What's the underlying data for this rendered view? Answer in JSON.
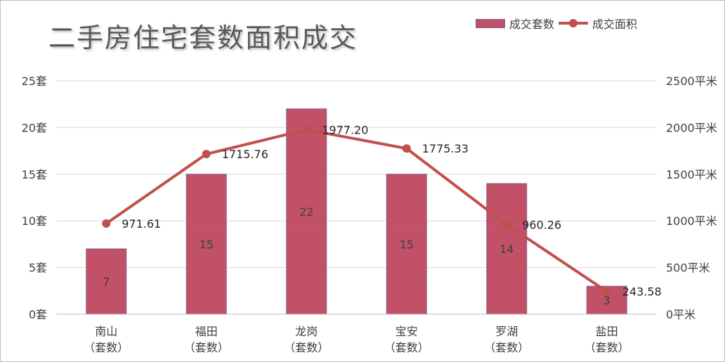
{
  "chart_data": {
    "type": "bar",
    "title": "二手房住宅套数面积成交",
    "categories": [
      [
        "南山",
        "（套数）"
      ],
      [
        "福田",
        "（套数）"
      ],
      [
        "龙岗",
        "（套数）"
      ],
      [
        "宝安",
        "（套数）"
      ],
      [
        "罗湖",
        "（套数）"
      ],
      [
        "盐田",
        "（套数）"
      ]
    ],
    "series": [
      {
        "name": "成交套数",
        "type": "bar",
        "axis": "left",
        "values": [
          7,
          15,
          22,
          15,
          14,
          3
        ],
        "labels": [
          "7",
          "15",
          "22",
          "15",
          "14",
          "3"
        ]
      },
      {
        "name": "成交面积",
        "type": "line",
        "axis": "right",
        "values": [
          971.61,
          1715.76,
          1977.2,
          1775.33,
          960.26,
          243.58
        ],
        "labels": [
          "971.61",
          "1715.76",
          "1977.20",
          "1775.33",
          "960.26",
          "243.58"
        ]
      }
    ],
    "y_left": {
      "range": [
        0,
        25
      ],
      "ticks": [
        0,
        5,
        10,
        15,
        20,
        25
      ],
      "tick_labels": [
        "0套",
        "5套",
        "10套",
        "15套",
        "20套",
        "25套"
      ]
    },
    "y_right": {
      "range": [
        0,
        2500
      ],
      "ticks": [
        0,
        500,
        1000,
        1500,
        2000,
        2500
      ],
      "tick_labels": [
        "0平米",
        "500平米",
        "1000平米",
        "1500平米",
        "2000平米",
        "2500平米"
      ]
    },
    "grid": true,
    "legend_position": "top-right",
    "colors": {
      "bar_fill": "#e04848",
      "bar_stripe": "#9a5a8a",
      "bar_border": "#7d6591",
      "line": "#c0504d",
      "grid": "#d9d9d9"
    }
  }
}
